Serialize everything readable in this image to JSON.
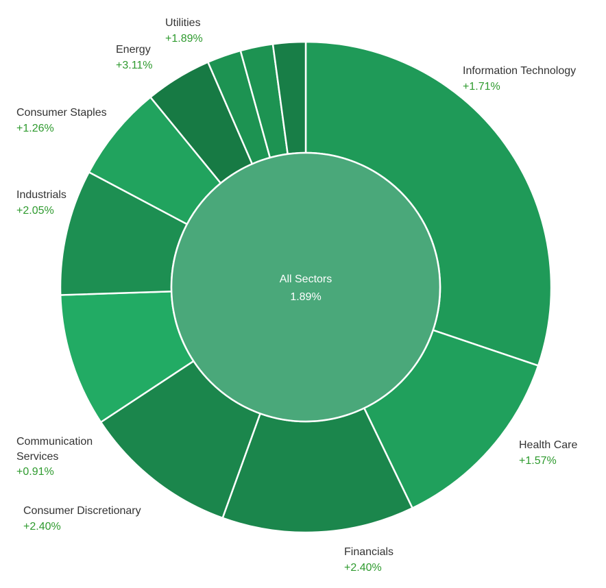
{
  "chart_data": {
    "type": "pie",
    "variant": "sunburst-donut",
    "center": {
      "label": "All Sectors",
      "value": "1.89%",
      "color": "#4aa87a"
    },
    "sectors": [
      {
        "name": "Information Technology",
        "change": "+1.71%",
        "weight": 31.0,
        "color": "#1f9a58"
      },
      {
        "name": "Health Care",
        "change": "+1.57%",
        "weight": 13.0,
        "color": "#20a05c"
      },
      {
        "name": "Financials",
        "change": "+2.40%",
        "weight": 13.0,
        "color": "#1b864c"
      },
      {
        "name": "Consumer Discretionary",
        "change": "+2.40%",
        "weight": 10.5,
        "color": "#1b864c"
      },
      {
        "name": "Communication Services",
        "change": "+0.91%",
        "weight": 9.0,
        "color": "#22ab64"
      },
      {
        "name": "Industrials",
        "change": "+2.05%",
        "weight": 8.5,
        "color": "#1d8f52"
      },
      {
        "name": "Consumer Staples",
        "change": "+1.26%",
        "weight": 6.5,
        "color": "#21a35e"
      },
      {
        "name": "Energy",
        "change": "+3.11%",
        "weight": 4.5,
        "color": "#177a44"
      },
      {
        "name": "",
        "change": "",
        "weight": 2.3,
        "color": "#1d9352"
      },
      {
        "name": "",
        "change": "",
        "weight": 2.2,
        "color": "#1d9352"
      },
      {
        "name": "Utilities",
        "change": "+1.89%",
        "weight": 2.2,
        "color": "#187e47"
      }
    ]
  }
}
